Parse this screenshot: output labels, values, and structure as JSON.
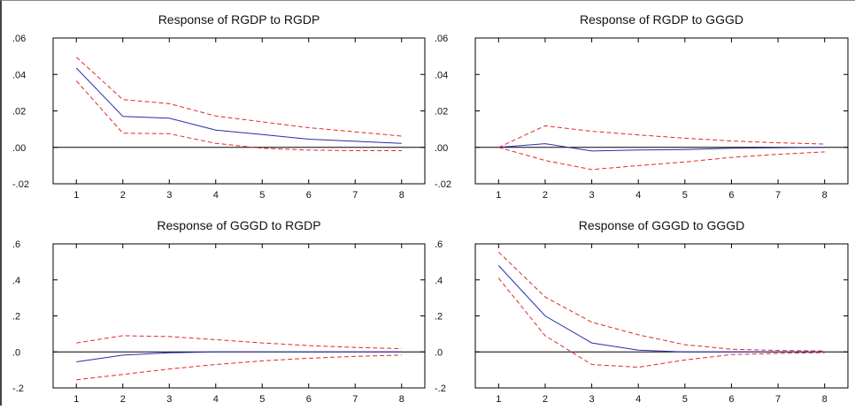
{
  "colors": {
    "response": "#2b2bab",
    "bands": "#e0282b",
    "frame": "#000000",
    "zero_line": "#000000"
  },
  "chart_data": [
    {
      "type": "line",
      "title": "Response of RGDP to RGDP",
      "x": [
        1,
        2,
        3,
        4,
        5,
        6,
        7,
        8
      ],
      "xlim": [
        0.5,
        8.5
      ],
      "ylim": [
        -0.02,
        0.06
      ],
      "yticks": [
        -0.02,
        0.0,
        0.02,
        0.04,
        0.06
      ],
      "ytick_labels": [
        "-.02",
        ".00",
        ".02",
        ".04",
        ".06"
      ],
      "series": [
        {
          "role": "response",
          "style": "solid",
          "values": [
            0.0435,
            0.017,
            0.016,
            0.0095,
            0.007,
            0.0045,
            0.0033,
            0.0022
          ]
        },
        {
          "role": "upper",
          "style": "dashed",
          "values": [
            0.0495,
            0.0262,
            0.024,
            0.0172,
            0.014,
            0.0108,
            0.0085,
            0.0062
          ]
        },
        {
          "role": "lower",
          "style": "dashed",
          "values": [
            0.0365,
            0.0078,
            0.0075,
            0.0022,
            -0.0005,
            -0.0015,
            -0.0018,
            -0.0018
          ]
        }
      ]
    },
    {
      "type": "line",
      "title": "Response of RGDP to GGGD",
      "x": [
        1,
        2,
        3,
        4,
        5,
        6,
        7,
        8
      ],
      "xlim": [
        0.5,
        8.5
      ],
      "ylim": [
        -0.02,
        0.06
      ],
      "yticks": [
        -0.02,
        0.0,
        0.02,
        0.04,
        0.06
      ],
      "ytick_labels": [
        "-.02",
        ".00",
        ".02",
        ".04",
        ".06"
      ],
      "series": [
        {
          "role": "response",
          "style": "solid",
          "values": [
            0.0,
            0.002,
            -0.002,
            -0.0015,
            -0.0012,
            -0.0005,
            -0.0002,
            0.0
          ]
        },
        {
          "role": "upper",
          "style": "dashed",
          "values": [
            0.0,
            0.0118,
            0.0088,
            0.0068,
            0.005,
            0.0035,
            0.0025,
            0.0018
          ]
        },
        {
          "role": "lower",
          "style": "dashed",
          "values": [
            0.0,
            -0.0072,
            -0.0122,
            -0.01,
            -0.008,
            -0.0055,
            -0.0038,
            -0.0025
          ]
        }
      ]
    },
    {
      "type": "line",
      "title": "Response of GGGD to RGDP",
      "x": [
        1,
        2,
        3,
        4,
        5,
        6,
        7,
        8
      ],
      "xlim": [
        0.5,
        8.5
      ],
      "ylim": [
        -0.2,
        0.6
      ],
      "yticks": [
        -0.2,
        0.0,
        0.2,
        0.4,
        0.6
      ],
      "ytick_labels": [
        "-.2",
        ".0",
        ".2",
        ".4",
        ".6"
      ],
      "series": [
        {
          "role": "response",
          "style": "solid",
          "values": [
            -0.055,
            -0.018,
            -0.005,
            0.0,
            0.0,
            0.0,
            0.0,
            0.0
          ]
        },
        {
          "role": "upper",
          "style": "dashed",
          "values": [
            0.05,
            0.09,
            0.085,
            0.068,
            0.05,
            0.035,
            0.025,
            0.018
          ]
        },
        {
          "role": "lower",
          "style": "dashed",
          "values": [
            -0.155,
            -0.125,
            -0.095,
            -0.07,
            -0.05,
            -0.035,
            -0.025,
            -0.018
          ]
        }
      ]
    },
    {
      "type": "line",
      "title": "Response of GGGD to GGGD",
      "x": [
        1,
        2,
        3,
        4,
        5,
        6,
        7,
        8
      ],
      "xlim": [
        0.5,
        8.5
      ],
      "ylim": [
        -0.2,
        0.6
      ],
      "yticks": [
        -0.2,
        0.0,
        0.2,
        0.4,
        0.6
      ],
      "ytick_labels": [
        "-.2",
        ".0",
        ".2",
        ".4",
        ".6"
      ],
      "series": [
        {
          "role": "response",
          "style": "solid",
          "values": [
            0.48,
            0.2,
            0.05,
            0.01,
            0.0,
            0.0,
            0.0,
            0.0
          ]
        },
        {
          "role": "upper",
          "style": "dashed",
          "values": [
            0.555,
            0.305,
            0.165,
            0.095,
            0.04,
            0.015,
            0.008,
            0.005
          ]
        },
        {
          "role": "lower",
          "style": "dashed",
          "values": [
            0.41,
            0.09,
            -0.07,
            -0.085,
            -0.045,
            -0.015,
            -0.008,
            -0.004
          ]
        }
      ]
    }
  ]
}
